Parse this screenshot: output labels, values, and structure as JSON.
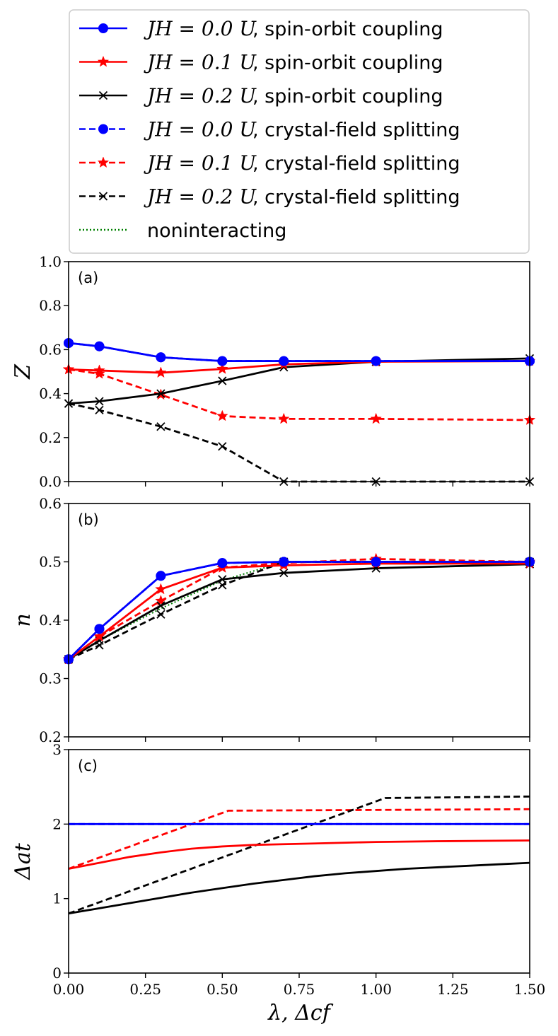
{
  "chart_data": {
    "type": "line",
    "x": [
      0.0,
      0.1,
      0.3,
      0.5,
      0.7,
      1.0,
      1.5
    ],
    "xlim": [
      0.0,
      1.5
    ],
    "xticks": [
      "0.00",
      "0.25",
      "0.50",
      "0.75",
      "1.00",
      "1.25",
      "1.50"
    ],
    "xlabel": "λ, Δcf",
    "legend": {
      "placement": "top",
      "entries": [
        {
          "id": "j00soc",
          "math": "JH = 0.0 U",
          "text": ", spin-orbit coupling",
          "color": "#0000ff",
          "dash": "solid",
          "marker": "circle"
        },
        {
          "id": "j01soc",
          "math": "JH = 0.1 U",
          "text": ", spin-orbit coupling",
          "color": "#ff0000",
          "dash": "solid",
          "marker": "star"
        },
        {
          "id": "j02soc",
          "math": "JH = 0.2 U",
          "text": ", spin-orbit coupling",
          "color": "#000000",
          "dash": "solid",
          "marker": "x"
        },
        {
          "id": "j00cf",
          "math": "JH = 0.0 U",
          "text": ", crystal-field splitting",
          "color": "#0000ff",
          "dash": "dashed",
          "marker": "circle"
        },
        {
          "id": "j01cf",
          "math": "JH = 0.1 U",
          "text": ", crystal-field splitting",
          "color": "#ff0000",
          "dash": "dashed",
          "marker": "star"
        },
        {
          "id": "j02cf",
          "math": "JH = 0.2 U",
          "text": ", crystal-field splitting",
          "color": "#000000",
          "dash": "dashed",
          "marker": "x"
        },
        {
          "id": "nonint",
          "math": "",
          "text": "noninteracting",
          "color": "#008000",
          "dash": "dotted",
          "marker": "none"
        }
      ]
    },
    "panels": [
      {
        "label": "(a)",
        "ylabel": "Z",
        "ylim": [
          0.0,
          1.0
        ],
        "yticks": [
          "0.0",
          "0.2",
          "0.4",
          "0.6",
          "0.8",
          "1.0"
        ],
        "series": [
          {
            "id": "j00cf",
            "x": [
              0.0,
              0.1,
              0.3,
              0.5,
              0.7,
              1.0,
              1.5
            ],
            "y": [
              0.63,
              0.615,
              0.565,
              0.548,
              0.548,
              0.548,
              0.548
            ]
          },
          {
            "id": "j02cf",
            "x": [
              0.0,
              0.1,
              0.3,
              0.5,
              0.7,
              1.0,
              1.5
            ],
            "y": [
              0.355,
              0.325,
              0.25,
              0.16,
              0.0,
              0.0,
              0.0
            ]
          },
          {
            "id": "j01cf",
            "x": [
              0.0,
              0.1,
              0.3,
              0.5,
              0.7,
              1.0,
              1.5
            ],
            "y": [
              0.51,
              0.49,
              0.395,
              0.298,
              0.285,
              0.285,
              0.28
            ]
          },
          {
            "id": "j02soc",
            "x": [
              0.0,
              0.1,
              0.3,
              0.5,
              0.7,
              1.0,
              1.5
            ],
            "y": [
              0.355,
              0.365,
              0.4,
              0.458,
              0.52,
              0.545,
              0.56
            ]
          },
          {
            "id": "j01soc",
            "x": [
              0.0,
              0.1,
              0.3,
              0.5,
              0.7,
              1.0,
              1.5
            ],
            "y": [
              0.51,
              0.505,
              0.495,
              0.512,
              0.533,
              0.545,
              0.548
            ]
          },
          {
            "id": "j00soc",
            "x": [
              0.0,
              0.1,
              0.3,
              0.5,
              0.7,
              1.0,
              1.5
            ],
            "y": [
              0.63,
              0.615,
              0.565,
              0.548,
              0.548,
              0.548,
              0.548
            ]
          }
        ]
      },
      {
        "label": "(b)",
        "ylabel": "n",
        "ylim": [
          0.2,
          0.6
        ],
        "yticks": [
          "0.2",
          "0.3",
          "0.4",
          "0.5",
          "0.6"
        ],
        "series": [
          {
            "id": "nonint",
            "x": [
              0.0,
              0.1,
              0.3,
              0.5,
              0.7,
              1.0,
              1.5
            ],
            "y": [
              0.333,
              0.365,
              0.42,
              0.468,
              0.5,
              0.5,
              0.5
            ]
          },
          {
            "id": "j00cf",
            "x": [
              0.0,
              0.1,
              0.3,
              0.5,
              0.7,
              1.0,
              1.5
            ],
            "y": [
              0.333,
              0.385,
              0.476,
              0.498,
              0.5,
              0.5,
              0.5
            ]
          },
          {
            "id": "j02cf",
            "x": [
              0.0,
              0.1,
              0.3,
              0.5,
              0.7,
              1.0,
              1.5
            ],
            "y": [
              0.333,
              0.357,
              0.41,
              0.46,
              0.5,
              0.5,
              0.5
            ]
          },
          {
            "id": "j01cf",
            "x": [
              0.0,
              0.1,
              0.3,
              0.5,
              0.7,
              1.0,
              1.5
            ],
            "y": [
              0.333,
              0.372,
              0.433,
              0.49,
              0.498,
              0.505,
              0.5
            ]
          },
          {
            "id": "j02soc",
            "x": [
              0.0,
              0.1,
              0.3,
              0.5,
              0.7,
              1.0,
              1.5
            ],
            "y": [
              0.333,
              0.365,
              0.425,
              0.47,
              0.481,
              0.489,
              0.496
            ]
          },
          {
            "id": "j01soc",
            "x": [
              0.0,
              0.1,
              0.3,
              0.5,
              0.7,
              1.0,
              1.5
            ],
            "y": [
              0.333,
              0.372,
              0.453,
              0.49,
              0.494,
              0.497,
              0.497
            ]
          },
          {
            "id": "j00soc",
            "x": [
              0.0,
              0.1,
              0.3,
              0.5,
              0.7,
              1.0,
              1.5
            ],
            "y": [
              0.333,
              0.385,
              0.476,
              0.498,
              0.5,
              0.5,
              0.5
            ]
          }
        ]
      },
      {
        "label": "(c)",
        "ylabel": "Δat",
        "ylim": [
          0,
          3
        ],
        "yticks": [
          "0",
          "1",
          "2",
          "3"
        ],
        "series": [
          {
            "id": "j00cf",
            "x": [
              0.0,
              1.5
            ],
            "y": [
              2.0,
              2.0
            ]
          },
          {
            "id": "j01cf",
            "x": [
              0.0,
              0.52,
              1.5
            ],
            "y": [
              1.4,
              2.18,
              2.2
            ]
          },
          {
            "id": "j02cf",
            "x": [
              0.0,
              1.03,
              1.5
            ],
            "y": [
              0.8,
              2.35,
              2.37
            ]
          },
          {
            "id": "j00soc",
            "x": [
              0.0,
              1.5
            ],
            "y": [
              2.0,
              2.0
            ]
          },
          {
            "id": "j01soc",
            "x": [
              0.0,
              0.1,
              0.2,
              0.3,
              0.4,
              0.5,
              0.6,
              0.7,
              0.8,
              1.0,
              1.2,
              1.5
            ],
            "y": [
              1.4,
              1.48,
              1.56,
              1.62,
              1.67,
              1.7,
              1.72,
              1.73,
              1.74,
              1.76,
              1.77,
              1.78
            ]
          },
          {
            "id": "j02soc",
            "x": [
              0.0,
              0.1,
              0.2,
              0.3,
              0.4,
              0.5,
              0.6,
              0.7,
              0.8,
              0.9,
              1.0,
              1.1,
              1.2,
              1.3,
              1.4,
              1.5
            ],
            "y": [
              0.8,
              0.87,
              0.94,
              1.01,
              1.08,
              1.14,
              1.2,
              1.25,
              1.3,
              1.34,
              1.37,
              1.4,
              1.42,
              1.44,
              1.46,
              1.48
            ]
          }
        ]
      }
    ]
  }
}
